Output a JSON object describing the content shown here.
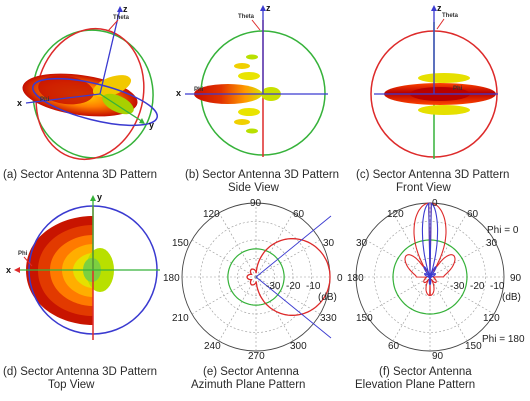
{
  "panels": [
    {
      "line1": "(a) Sector Antenna 3D Pattern",
      "line2": ""
    },
    {
      "line1": "(b) Sector Antenna 3D Pattern",
      "line2": "Side View"
    },
    {
      "line1": "(c) Sector Antenna 3D Pattern",
      "line2": "Front View"
    },
    {
      "line1": "(d) Sector Antenna 3D Pattern",
      "line2": "Top View"
    },
    {
      "line1": "(e) Sector Antenna",
      "line2": "Azimuth Plane Pattern"
    },
    {
      "line1": "(f) Sector Antenna",
      "line2": "Elevation Plane Pattern"
    }
  ],
  "axis_labels": {
    "x": "x",
    "y": "y",
    "z": "z",
    "theta": "Theta",
    "phi": "Phi"
  },
  "azimuth": {
    "angle_labels": [
      "90",
      "60",
      "30",
      "0",
      "330",
      "300",
      "270",
      "240",
      "210",
      "180",
      "150",
      "120"
    ],
    "radial_labels": [
      "-30",
      "-20",
      "-10"
    ],
    "unit": "(dB)"
  },
  "elevation": {
    "angle_labels": [
      "0",
      "30",
      "60",
      "90",
      "120",
      "150",
      "180",
      "150",
      "120",
      "90",
      "60",
      "30"
    ],
    "radial_labels": [
      "-30",
      "-20",
      "-10"
    ],
    "unit": "(dB)",
    "cut_labels": [
      "Phi = 0",
      "Phi = 180"
    ]
  },
  "colors": {
    "red": "#dd2a2a",
    "green": "#36b23a",
    "blue": "#3a3ad0",
    "grid": "#888888"
  }
}
